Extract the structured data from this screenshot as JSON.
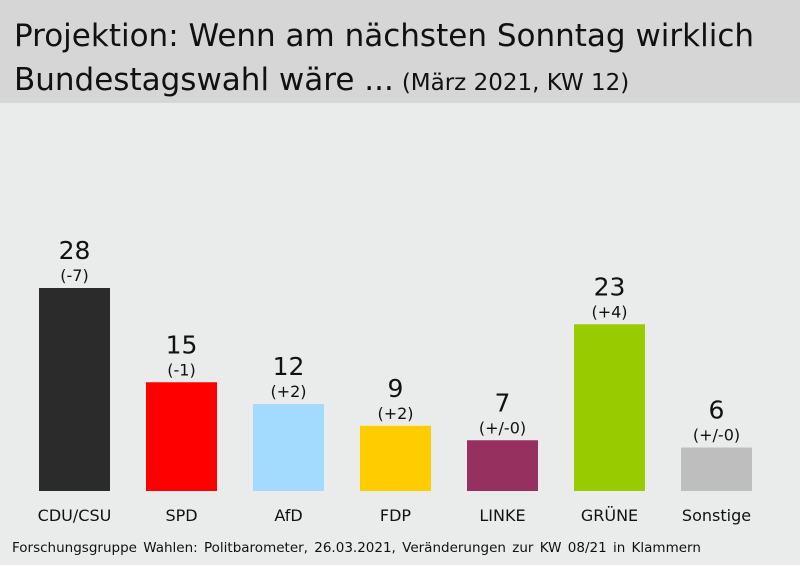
{
  "header": {
    "title_line1": "Projektion: Wenn am nächsten Sonntag wirklich",
    "title_line2": "Bundestagswahl wäre ...",
    "subtitle": "(März 2021, KW 12)"
  },
  "footer": {
    "source": "Forschungsgruppe Wahlen: Politbarometer, 26.03.2021, Veränderungen zur KW 08/21 in Klammern"
  },
  "chart_data": {
    "type": "bar",
    "title": "Projektion: Wenn am nächsten Sonntag wirklich Bundestagswahl wäre ... (März 2021, KW 12)",
    "categories": [
      "CDU/CSU",
      "SPD",
      "AfD",
      "FDP",
      "LINKE",
      "GRÜNE",
      "Sonstige"
    ],
    "values": [
      28,
      15,
      12,
      9,
      7,
      23,
      6
    ],
    "changes": [
      "(-7)",
      "(-1)",
      "(+2)",
      "(+2)",
      "(+/-0)",
      "(+4)",
      "(+/-0)"
    ],
    "colors": [
      "#2b2b2b",
      "#ff0000",
      "#a3daff",
      "#ffcc00",
      "#95305f",
      "#99cc00",
      "#bebebe"
    ],
    "ylim": [
      0,
      28
    ],
    "grid": false,
    "legend": "none"
  }
}
